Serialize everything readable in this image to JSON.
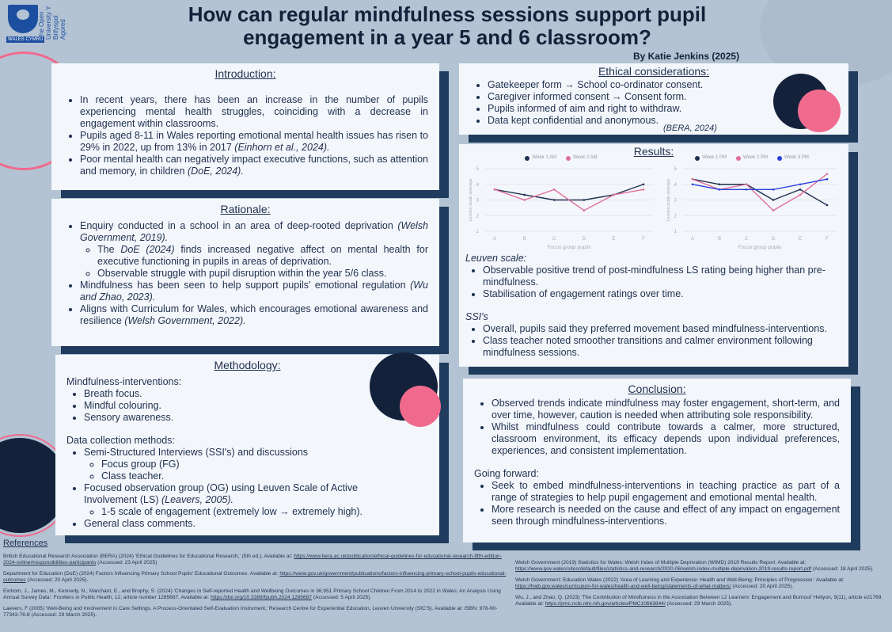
{
  "header": {
    "title": "How can regular mindfulness sessions support pupil engagement in a year 5 and 6 classroom?",
    "author": "By Katie Jenkins (2025)",
    "logo_text": "The Open University Y Brifysgol Agored",
    "logo_badge": "WALES CYMRU"
  },
  "introduction": {
    "heading": "Introduction:",
    "items": [
      {
        "text": "In recent years, there has been an increase in the number of pupils experiencing mental health struggles, coinciding with a decrease in engagement within classrooms.",
        "cite": ""
      },
      {
        "text": "Pupils aged 8-11 in Wales reporting emotional mental health issues has risen to 29% in 2022, up from 13% in 2017 ",
        "cite": "(Einhorn et al., 2024)."
      },
      {
        "text": "Poor mental health can negatively impact executive functions, such as attention and memory, in children ",
        "cite": "(DoE, 2024)."
      }
    ]
  },
  "rationale": {
    "heading": "Rationale:",
    "item1": "Enquiry conducted in a school in an area of deep-rooted deprivation ",
    "item1_cite": "(Welsh Government, 2019).",
    "sub1a_pre": "The ",
    "sub1a_cite": "DoE (2024)",
    "sub1a": " finds increased negative affect on mental health for executive functioning in pupils in areas of deprivation.",
    "sub1b": "Observable struggle with pupil disruption within the year 5/6 class.",
    "item2": "Mindfulness has been seen to help support pupils' emotional regulation ",
    "item2_cite": "(Wu and Zhao, 2023).",
    "item3": "Aligns with Curriculum for Wales, which encourages emotional awareness and resilience ",
    "item3_cite": "(Welsh Government, 2022)."
  },
  "methodology": {
    "heading": "Methodology:",
    "interventions_label": "Mindfulness-interventions:",
    "interventions": [
      "Breath focus.",
      "Mindful colouring.",
      "Sensory awareness."
    ],
    "data_label": "Data collection methods:",
    "ssi": "Semi-Structured Interviews (SSI's) and discussions",
    "ssi_sub": [
      "Focus group (FG)",
      "Class teacher."
    ],
    "og": "Focused observation group (OG) using Leuven Scale of Active Involvement (LS) ",
    "og_cite": "(Leavers, 2005).",
    "og_sub": "1-5 scale of engagement (extremely low → extremely high).",
    "general": "General class comments."
  },
  "ethical": {
    "heading": "Ethical considerations:",
    "items": [
      "Gatekeeper form →  School co-ordinator consent.",
      "Caregiver informed consent → Consent form.",
      "Pupils informed of aim and right to withdraw.",
      "Data kept confidential and anonymous."
    ],
    "cite": "(BERA, 2024)"
  },
  "results": {
    "heading": "Results:",
    "leuven_label": "Leuven scale:",
    "leuven": [
      "Observable positive trend of post-mindfulness LS rating being higher than pre-mindfulness.",
      "Stabilisation of engagement ratings over time."
    ],
    "ssi_label": "SSI's",
    "ssi": [
      "Overall, pupils said they preferred movement based mindfulness-interventions.",
      "Class teacher noted smoother transitions and calmer environment following mindfulness sessions."
    ]
  },
  "chart_data": [
    {
      "type": "line",
      "categories": [
        "A",
        "B",
        "C",
        "D",
        "E",
        "F"
      ],
      "xlabel": "Focus group pupils",
      "ylabel": "Leuven scale average",
      "ylim": [
        1,
        5
      ],
      "yticks": [
        1,
        2,
        3,
        4,
        5
      ],
      "grid": true,
      "legend": "top",
      "series": [
        {
          "name": "Week 1 AM",
          "color": "#1f3050",
          "values": [
            3.67,
            3.33,
            3,
            3,
            3.33,
            4
          ]
        },
        {
          "name": "Week 2 AM",
          "color": "#e0709a",
          "values": [
            3.67,
            3,
            3.67,
            2.33,
            3.33,
            3.67
          ]
        }
      ]
    },
    {
      "type": "line",
      "categories": [
        "A",
        "B",
        "C",
        "D",
        "E",
        "F"
      ],
      "xlabel": "Focus group pupils",
      "ylabel": "Leuven scale average",
      "ylim": [
        1,
        5
      ],
      "yticks": [
        1,
        2,
        3,
        4,
        5
      ],
      "grid": true,
      "legend": "top",
      "series": [
        {
          "name": "Week 1 PM",
          "color": "#1f3050",
          "values": [
            4.33,
            4,
            4,
            3,
            3.67,
            2.67
          ]
        },
        {
          "name": "Week 2 PM",
          "color": "#e0709a",
          "values": [
            4.33,
            3.67,
            4,
            2.33,
            3.33,
            4.67
          ]
        },
        {
          "name": "Week 3 PM",
          "color": "#2a3ee0",
          "values": [
            4,
            3.67,
            3.67,
            3.67,
            4,
            4.33
          ]
        }
      ]
    }
  ],
  "conclusion": {
    "heading": "Conclusion:",
    "items": [
      "Observed trends indicate mindfulness may foster engagement, short-term, and over time, however, caution is needed when attributing sole responsibility.",
      "Whilst mindfulness could contribute towards a calmer, more structured, classroom environment, its efficacy depends upon individual preferences, experiences, and consistent implementation."
    ],
    "forward_label": "Going forward:",
    "forward": [
      "Seek to embed mindfulness-interventions in  teaching practice as part of a range of strategies to help pupil engagement and emotional mental health.",
      "More research is needed on the cause and effect of any impact on engagement seen through mindfulness-interventions."
    ]
  },
  "references": {
    "heading": "References",
    "left": [
      {
        "text": "British Educational Research Association (BERA) (2024) 'Ethical Guidelines for Educational Research,' (5th ed.). Available at: ",
        "url": "https://www.bera.ac.uk/publication/ethical-guidelines-for-educational-research-fifth-edition-2024-online#responsibilities-participants",
        "after": " (Accessed: 23 April 2025)"
      },
      {
        "text": "Department for Education (DoE) (2024) Factors Influencing Primary School Pupils' Educational Outcomes. Available at: ",
        "url": "https://www.gov.uk/government/publications/factors-influencing-primary-school-pupils-educational-outcomes",
        "after": " (Accessed: 20 April 2025)."
      },
      {
        "text": "Einhorn, J., James, M., Kennedy, N., Marchant, E., and Brophy, S. (2024) 'Changes in Self-reported Health and Wellbeing Outcomes in 36,951 Primary School Children From 2014 to 2022 in Wales: An Analysis Using Annual Survey Data'. Frontiers in Public Health, 12, article number 1285687. Available at: ",
        "url": "https://doi.org/10.3389/fpubh.2024.1285687",
        "after": " (Accessed: 5 April 2025)."
      },
      {
        "text": "Laevers, F (2005) 'Well-Being and Involvement in Care Settings. A Process-Orientated Self-Evaluation Instrument,' Research Centre for Experiential Education, Leuven University (SIC'S). Available at: ISBN: 978-90-77343-76-8 (Accessed: 29 March 2025).",
        "url": "",
        "after": ""
      }
    ],
    "right": [
      {
        "text": "Welsh Government (2019) Statistics for Wales: Welsh Index of Multiple Deprivation (WIMD) 2019 Results Report. Available at: ",
        "url": "https://www.gov.wales/sites/default/files/statistics-and-research/2020-06/welsh-index-multiple-deprivation-2019-results-report.pdf",
        "after": " (Accessed: 18 April 2025)."
      },
      {
        "text": "Welsh Government: Education Wales (2022) 'Area of Learning and Experience: Health and Well-Being: Principles of Progression.' Available at: ",
        "url": "https://hwb.gov.wales/curriculum-for-wales/health-and-well-being/statements-of-what-matters/",
        "after": " (Accessed: 20 April 2025)."
      },
      {
        "text": "Wu, J., and Zhao, Q. (2023) 'The Contribution of Mindfulness in the Association Between L2 Learners' Engagement and Burnout' Heliyon, 9(11), article e21769. Available at: ",
        "url": "https://pmc.ncbi.nlm.nih.gov/articles/PMC10663844/",
        "after": " (Accessed: 29 March 2025)."
      }
    ]
  }
}
